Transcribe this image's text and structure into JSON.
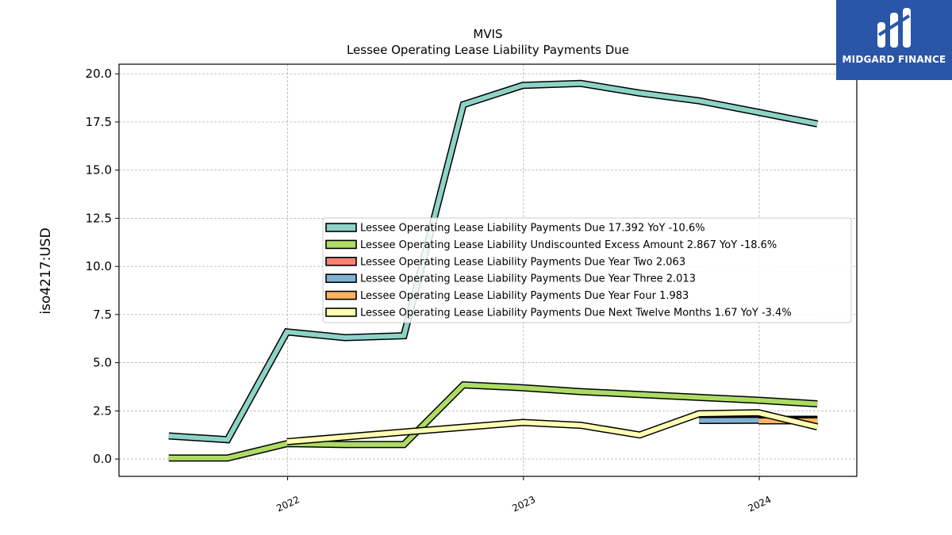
{
  "logo": {
    "text": "MIDGARD FINANCE",
    "color": "#2a56a8"
  },
  "chart_data": {
    "type": "line",
    "title": "MVIS",
    "subtitle": "Lessee Operating Lease Liability Payments Due",
    "ylabel": "iso4217:USD",
    "xlabel": "",
    "ylim": [
      -0.9,
      20.5
    ],
    "xlim": [
      "2021-04-15",
      "2024-05-31"
    ],
    "yticks": [
      0.0,
      2.5,
      5.0,
      7.5,
      10.0,
      12.5,
      15.0,
      17.5,
      20.0
    ],
    "ytick_labels": [
      "0.0",
      "2.5",
      "5.0",
      "7.5",
      "10.0",
      "12.5",
      "15.0",
      "17.5",
      "20.0"
    ],
    "xticks": [
      "2022-01-01",
      "2023-01-01",
      "2024-01-01"
    ],
    "xtick_labels": [
      "2022",
      "2023",
      "2024"
    ],
    "grid": true,
    "legend_position": "center-right",
    "series": [
      {
        "name": "Lessee Operating Lease Liability Payments Due",
        "legend": "Lessee Operating Lease Liability Payments Due  17.392 YoY -10.6%",
        "color": "#8dd3c7",
        "points": [
          [
            "2021-07-01",
            1.2
          ],
          [
            "2021-09-30",
            1.0
          ],
          [
            "2021-12-31",
            6.6
          ],
          [
            "2022-03-31",
            6.3
          ],
          [
            "2022-06-30",
            6.4
          ],
          [
            "2022-09-30",
            18.4
          ],
          [
            "2022-12-31",
            19.4
          ],
          [
            "2023-03-31",
            19.5
          ],
          [
            "2023-06-30",
            19.0
          ],
          [
            "2023-09-30",
            18.6
          ],
          [
            "2023-12-31",
            18.0
          ],
          [
            "2024-03-31",
            17.4
          ]
        ]
      },
      {
        "name": "Lessee Operating Lease Liability Undiscounted Excess Amount",
        "legend": "Lessee Operating Lease Liability Undiscounted Excess Amount  2.867 YoY -18.6%",
        "color": "#addc64",
        "points": [
          [
            "2021-07-01",
            0.05
          ],
          [
            "2021-09-30",
            0.05
          ],
          [
            "2021-12-31",
            0.8
          ],
          [
            "2022-03-31",
            0.75
          ],
          [
            "2022-06-30",
            0.75
          ],
          [
            "2022-09-30",
            3.85
          ],
          [
            "2022-12-31",
            3.7
          ],
          [
            "2023-03-31",
            3.5
          ],
          [
            "2023-06-30",
            3.35
          ],
          [
            "2023-09-30",
            3.2
          ],
          [
            "2023-12-31",
            3.05
          ],
          [
            "2024-03-31",
            2.867
          ]
        ]
      },
      {
        "name": "Lessee Operating Lease Liability Payments Due Year Two",
        "legend": "Lessee Operating Lease Liability Payments Due Year Two  2.063",
        "color": "#fb8072",
        "points": [
          [
            "2023-09-30",
            2.06
          ],
          [
            "2023-12-31",
            2.06
          ],
          [
            "2024-03-31",
            2.063
          ]
        ]
      },
      {
        "name": "Lessee Operating Lease Liability Payments Due Year Three",
        "legend": "Lessee Operating Lease Liability Payments Due Year Three  2.013",
        "color": "#80b1d3",
        "points": [
          [
            "2023-09-30",
            2.0
          ],
          [
            "2023-12-31",
            2.01
          ],
          [
            "2024-03-31",
            2.013
          ]
        ]
      },
      {
        "name": "Lessee Operating Lease Liability Payments Due Year Four",
        "legend": "Lessee Operating Lease Liability Payments Due Year Four  1.983",
        "color": "#fdb462",
        "points": [
          [
            "2023-12-31",
            1.98
          ],
          [
            "2024-03-31",
            1.983
          ]
        ]
      },
      {
        "name": "Lessee Operating Lease Liability Payments Due Next Twelve Months",
        "legend": "Lessee Operating Lease Liability Payments Due Next Twelve Months  1.67 YoY -3.4%",
        "color": "#ffffb3",
        "points": [
          [
            "2021-12-31",
            0.9
          ],
          [
            "2022-06-30",
            1.4
          ],
          [
            "2022-12-31",
            1.9
          ],
          [
            "2023-03-31",
            1.75
          ],
          [
            "2023-06-30",
            1.25
          ],
          [
            "2023-09-30",
            2.35
          ],
          [
            "2023-12-31",
            2.4
          ],
          [
            "2024-03-31",
            1.67
          ]
        ]
      }
    ]
  }
}
